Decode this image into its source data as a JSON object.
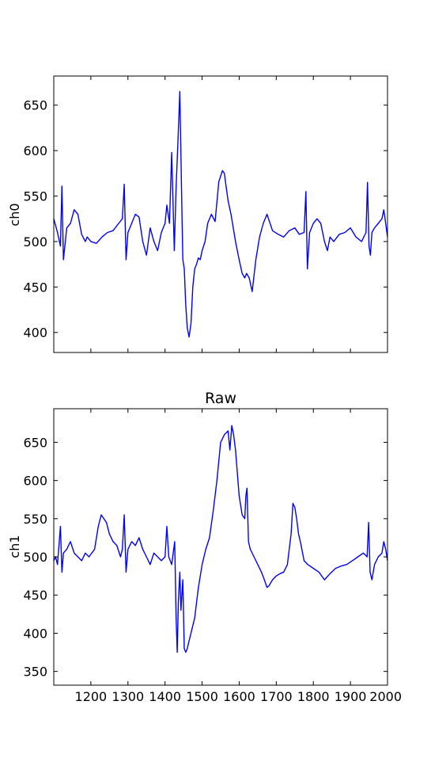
{
  "figure": {
    "title": "Raw"
  },
  "chart_data": [
    {
      "type": "line",
      "title": "",
      "xlabel": "",
      "ylabel": "ch0",
      "xlim": [
        1100,
        2000
      ],
      "ylim": [
        378,
        682
      ],
      "xticks": [
        1200,
        1300,
        1400,
        1500,
        1600,
        1700,
        1800,
        1900,
        2000
      ],
      "yticks": [
        400,
        450,
        500,
        550,
        600,
        650
      ],
      "show_xtick_labels": false,
      "color": "#0000ff",
      "x": [
        1100,
        1110,
        1118,
        1122,
        1126,
        1135,
        1145,
        1155,
        1165,
        1175,
        1185,
        1190,
        1200,
        1215,
        1230,
        1245,
        1260,
        1275,
        1285,
        1290,
        1295,
        1300,
        1310,
        1320,
        1330,
        1340,
        1350,
        1360,
        1370,
        1380,
        1390,
        1400,
        1405,
        1412,
        1418,
        1425,
        1430,
        1435,
        1440,
        1445,
        1448,
        1452,
        1456,
        1460,
        1465,
        1470,
        1475,
        1480,
        1485,
        1490,
        1495,
        1500,
        1508,
        1515,
        1525,
        1535,
        1545,
        1555,
        1560,
        1565,
        1570,
        1578,
        1590,
        1600,
        1608,
        1615,
        1620,
        1627,
        1635,
        1645,
        1655,
        1665,
        1675,
        1690,
        1705,
        1720,
        1735,
        1750,
        1762,
        1775,
        1780,
        1784,
        1790,
        1800,
        1810,
        1820,
        1830,
        1838,
        1845,
        1855,
        1870,
        1885,
        1900,
        1915,
        1930,
        1942,
        1946,
        1950,
        1954,
        1958,
        1965,
        1975,
        1985,
        1990,
        1995,
        2000
      ],
      "y": [
        525,
        510,
        495,
        561,
        480,
        515,
        520,
        535,
        530,
        508,
        500,
        505,
        500,
        498,
        505,
        510,
        512,
        520,
        525,
        563,
        480,
        510,
        520,
        530,
        527,
        500,
        485,
        515,
        500,
        490,
        510,
        520,
        540,
        520,
        598,
        490,
        560,
        612,
        665,
        545,
        480,
        470,
        430,
        405,
        395,
        410,
        450,
        470,
        475,
        482,
        480,
        490,
        500,
        520,
        530,
        522,
        566,
        578,
        575,
        560,
        545,
        530,
        500,
        480,
        465,
        460,
        465,
        460,
        445,
        480,
        505,
        520,
        530,
        512,
        508,
        505,
        512,
        515,
        508,
        510,
        555,
        470,
        510,
        520,
        525,
        520,
        500,
        490,
        505,
        500,
        508,
        510,
        515,
        505,
        500,
        510,
        565,
        495,
        485,
        510,
        515,
        520,
        525,
        535,
        520,
        505
      ]
    },
    {
      "type": "line",
      "title": "Raw",
      "xlabel": "",
      "ylabel": "ch1",
      "xlim": [
        1100,
        2000
      ],
      "ylim": [
        332,
        694
      ],
      "xticks": [
        1200,
        1300,
        1400,
        1500,
        1600,
        1700,
        1800,
        1900,
        2000
      ],
      "xtick_labels": [
        "1200",
        "1300",
        "1400",
        "1500",
        "1600",
        "1700",
        "1800",
        "1900",
        "2000"
      ],
      "yticks": [
        350,
        400,
        450,
        500,
        550,
        600,
        650
      ],
      "show_xtick_labels": true,
      "color": "#0000ff",
      "x": [
        1100,
        1105,
        1110,
        1118,
        1122,
        1126,
        1135,
        1145,
        1155,
        1165,
        1175,
        1185,
        1195,
        1210,
        1220,
        1228,
        1235,
        1242,
        1250,
        1260,
        1270,
        1280,
        1285,
        1290,
        1295,
        1300,
        1310,
        1320,
        1330,
        1340,
        1350,
        1360,
        1370,
        1380,
        1390,
        1400,
        1405,
        1410,
        1418,
        1426,
        1430,
        1433,
        1436,
        1440,
        1443,
        1448,
        1452,
        1456,
        1460,
        1465,
        1470,
        1475,
        1480,
        1485,
        1490,
        1500,
        1510,
        1520,
        1530,
        1540,
        1550,
        1560,
        1570,
        1575,
        1580,
        1585,
        1590,
        1600,
        1608,
        1615,
        1618,
        1621,
        1625,
        1630,
        1640,
        1650,
        1660,
        1668,
        1675,
        1680,
        1690,
        1700,
        1710,
        1720,
        1730,
        1740,
        1745,
        1750,
        1755,
        1760,
        1765,
        1775,
        1785,
        1800,
        1815,
        1830,
        1845,
        1860,
        1875,
        1890,
        1905,
        1920,
        1935,
        1945,
        1949,
        1953,
        1958,
        1965,
        1975,
        1985,
        1990,
        1995,
        2000
      ],
      "y": [
        495,
        500,
        490,
        540,
        480,
        505,
        510,
        520,
        505,
        500,
        495,
        505,
        500,
        510,
        540,
        555,
        550,
        545,
        530,
        520,
        515,
        500,
        510,
        555,
        480,
        510,
        520,
        515,
        525,
        510,
        500,
        490,
        505,
        500,
        495,
        500,
        540,
        500,
        490,
        520,
        420,
        375,
        440,
        480,
        430,
        470,
        380,
        375,
        380,
        390,
        400,
        410,
        420,
        440,
        460,
        490,
        510,
        525,
        560,
        600,
        650,
        660,
        665,
        640,
        672,
        660,
        640,
        580,
        555,
        550,
        580,
        590,
        520,
        510,
        500,
        490,
        480,
        470,
        460,
        462,
        470,
        475,
        478,
        480,
        490,
        530,
        570,
        565,
        550,
        530,
        520,
        495,
        490,
        485,
        480,
        470,
        478,
        485,
        488,
        490,
        495,
        500,
        505,
        500,
        545,
        480,
        470,
        490,
        500,
        505,
        520,
        510,
        495
      ]
    }
  ]
}
